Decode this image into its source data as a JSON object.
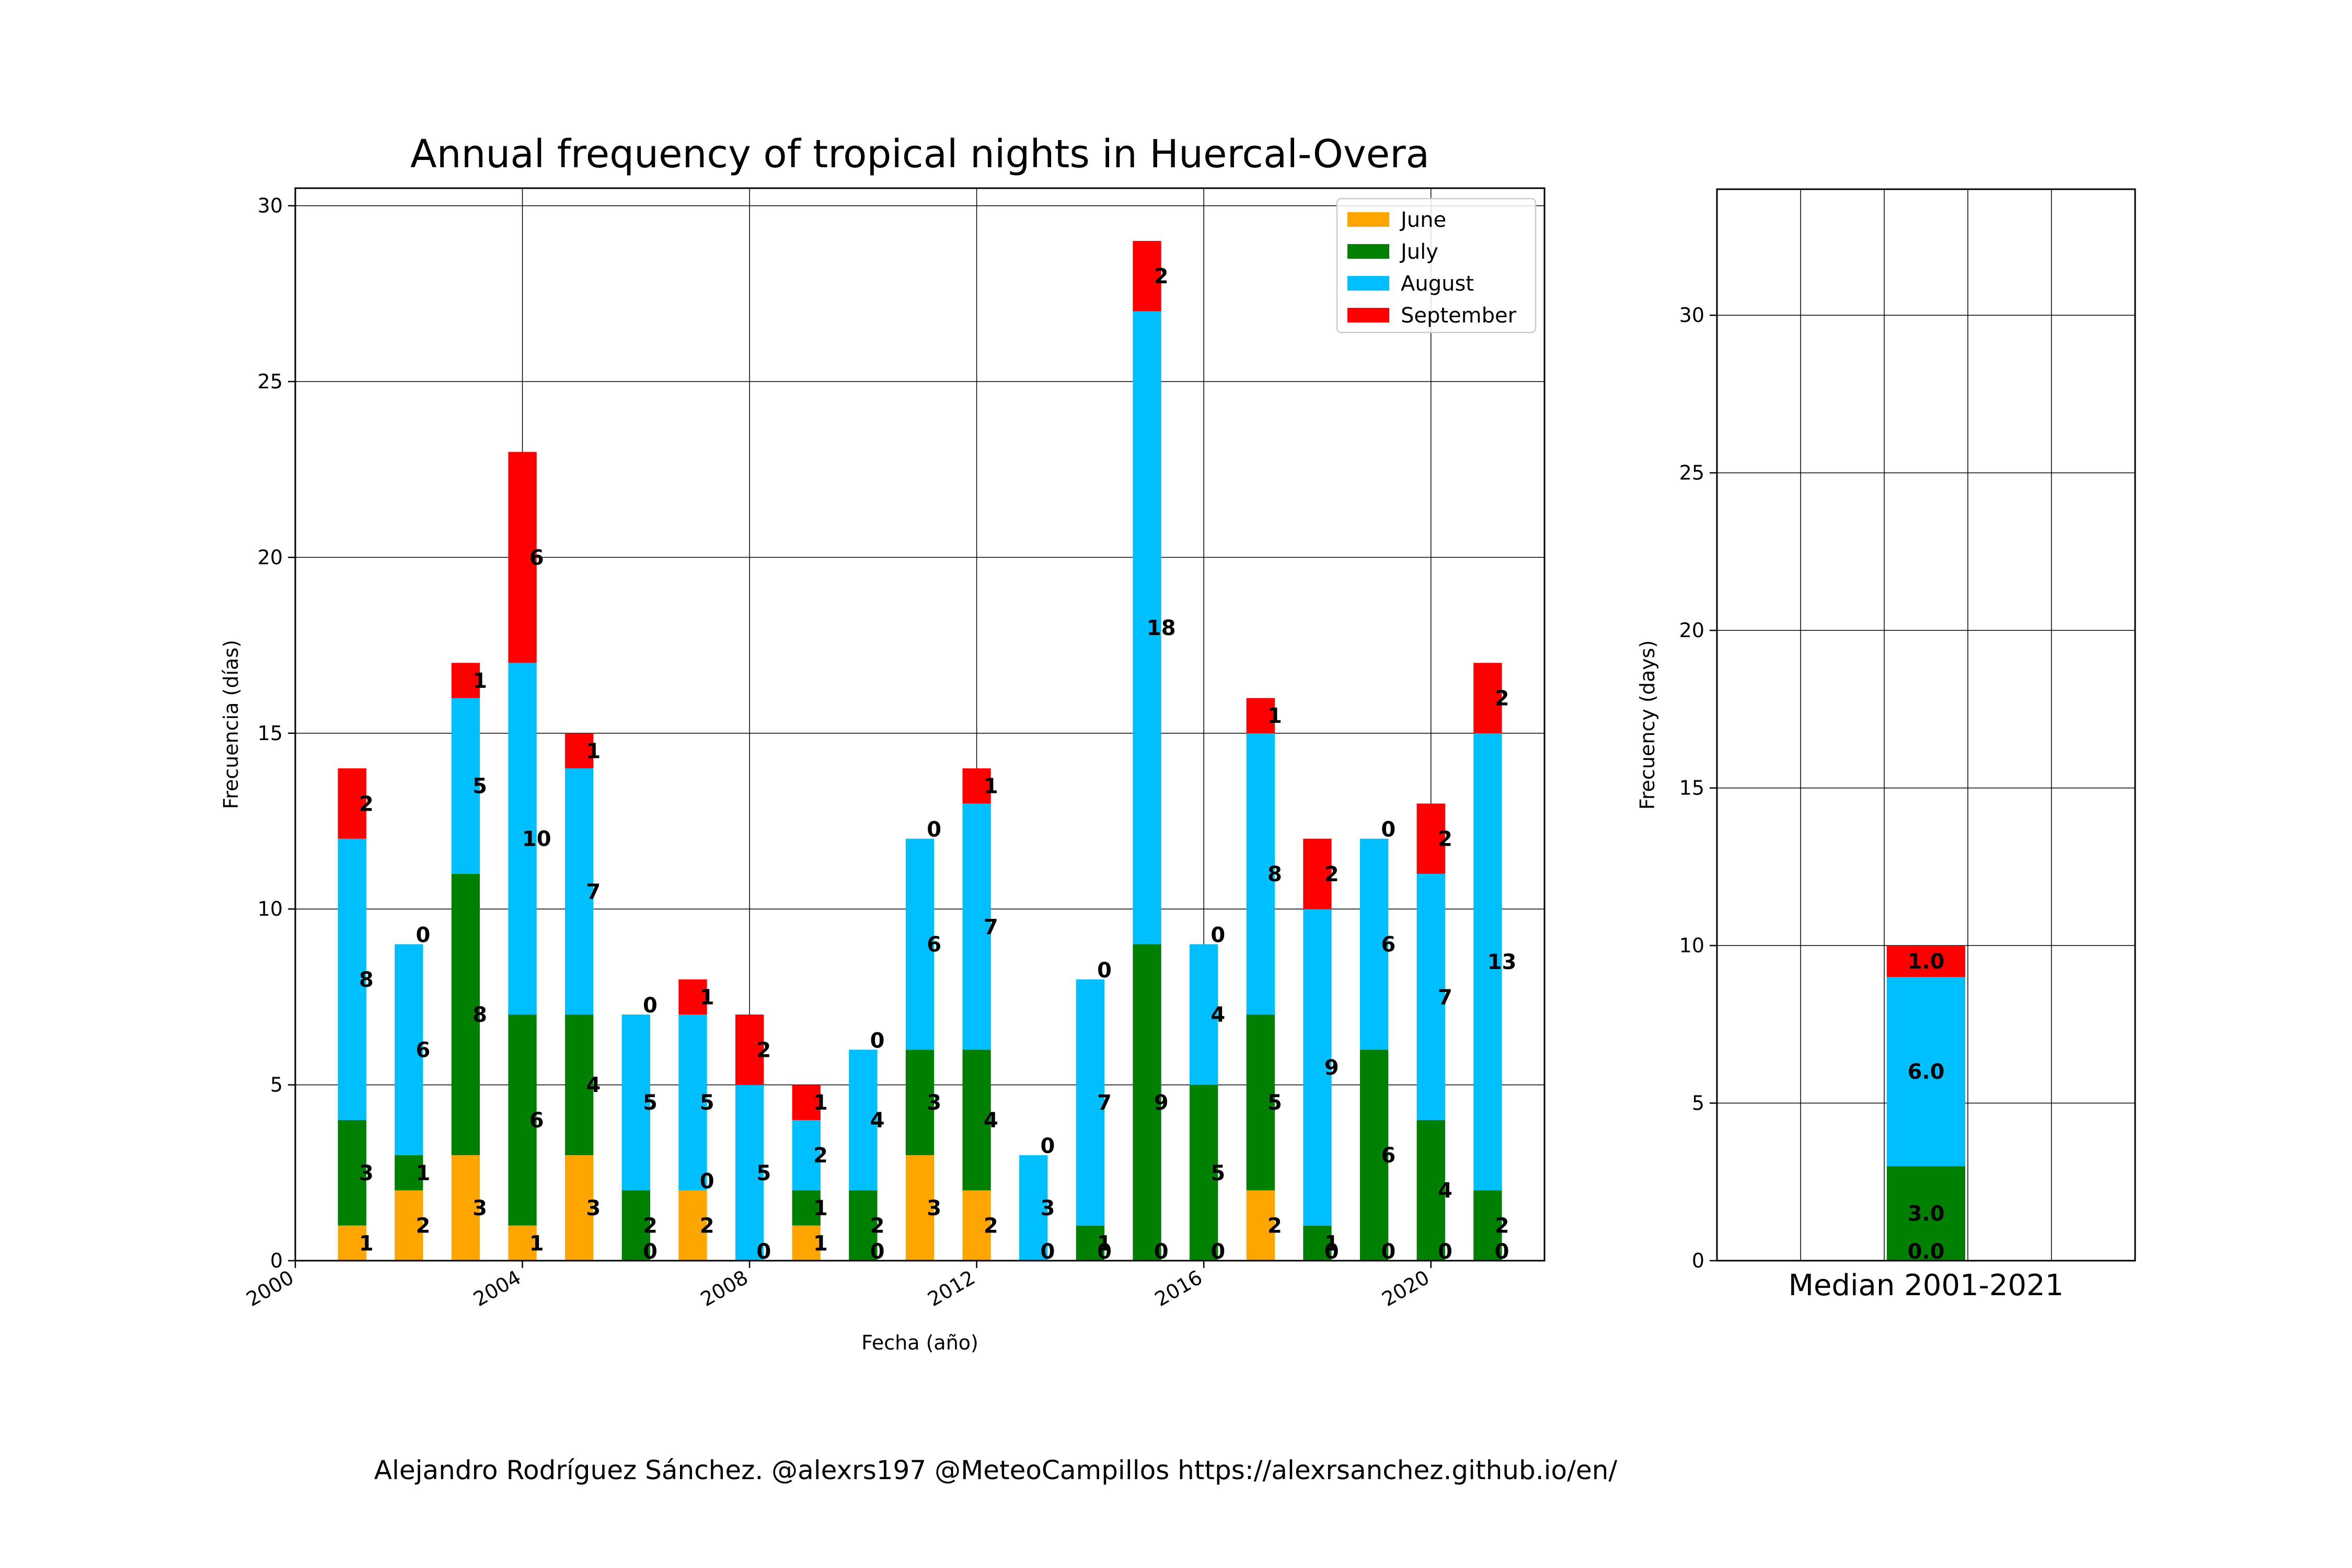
{
  "chart_data": [
    {
      "type": "bar",
      "stacked": true,
      "title": "Annual frequency of tropical nights in Huercal-Overa",
      "xlabel": "Fecha (año)",
      "ylabel": "Frecuencia (días)",
      "xlim": [
        2000,
        2022
      ],
      "ylim": [
        0,
        30.5
      ],
      "xticks": [
        "2000",
        "2004",
        "2008",
        "2012",
        "2016",
        "2020"
      ],
      "xtick_values": [
        2000,
        2004,
        2008,
        2012,
        2016,
        2020
      ],
      "yticks": [
        0,
        5,
        10,
        15,
        20,
        25,
        30
      ],
      "grid": true,
      "legend_position": "top-right",
      "x": [
        2001,
        2002,
        2003,
        2004,
        2005,
        2006,
        2007,
        2008,
        2009,
        2010,
        2011,
        2012,
        2013,
        2014,
        2015,
        2016,
        2017,
        2018,
        2019,
        2020,
        2021
      ],
      "series": [
        {
          "name": "June",
          "color": "#ffa500",
          "values": [
            1,
            2,
            3,
            1,
            3,
            0,
            2,
            0,
            1,
            0,
            3,
            2,
            0,
            0,
            0,
            0,
            2,
            0,
            0,
            0,
            0
          ]
        },
        {
          "name": "July",
          "color": "#008000",
          "values": [
            3,
            1,
            8,
            6,
            4,
            2,
            0,
            0,
            1,
            2,
            3,
            4,
            0,
            1,
            9,
            5,
            5,
            1,
            6,
            4,
            2
          ]
        },
        {
          "name": "August",
          "color": "#00bfff",
          "values": [
            8,
            6,
            5,
            10,
            7,
            5,
            5,
            5,
            2,
            4,
            6,
            7,
            3,
            7,
            18,
            4,
            8,
            9,
            6,
            7,
            13
          ]
        },
        {
          "name": "September",
          "color": "#ff0000",
          "values": [
            2,
            0,
            1,
            6,
            1,
            0,
            1,
            2,
            1,
            0,
            0,
            1,
            0,
            0,
            2,
            0,
            1,
            2,
            0,
            2,
            2
          ]
        }
      ]
    },
    {
      "type": "bar",
      "stacked": true,
      "ylabel": "Frecuency (days)",
      "ylim": [
        0,
        34
      ],
      "yticks": [
        0,
        5,
        10,
        15,
        20,
        25,
        30
      ],
      "grid": true,
      "categories": [
        "Median 2001-2021"
      ],
      "segments": [
        {
          "name": "June",
          "color": "#ffa500",
          "value": 0.0,
          "label": "0.0"
        },
        {
          "name": "July",
          "color": "#008000",
          "value": 3.0,
          "label": "3.0"
        },
        {
          "name": "August",
          "color": "#00bfff",
          "value": 6.0,
          "label": "6.0"
        },
        {
          "name": "September",
          "color": "#ff0000",
          "value": 1.0,
          "label": "1.0"
        }
      ]
    }
  ],
  "footer": "Alejandro Rodríguez Sánchez. @alexrs197 @MeteoCampillos   https://alexrsanchez.github.io/en/"
}
